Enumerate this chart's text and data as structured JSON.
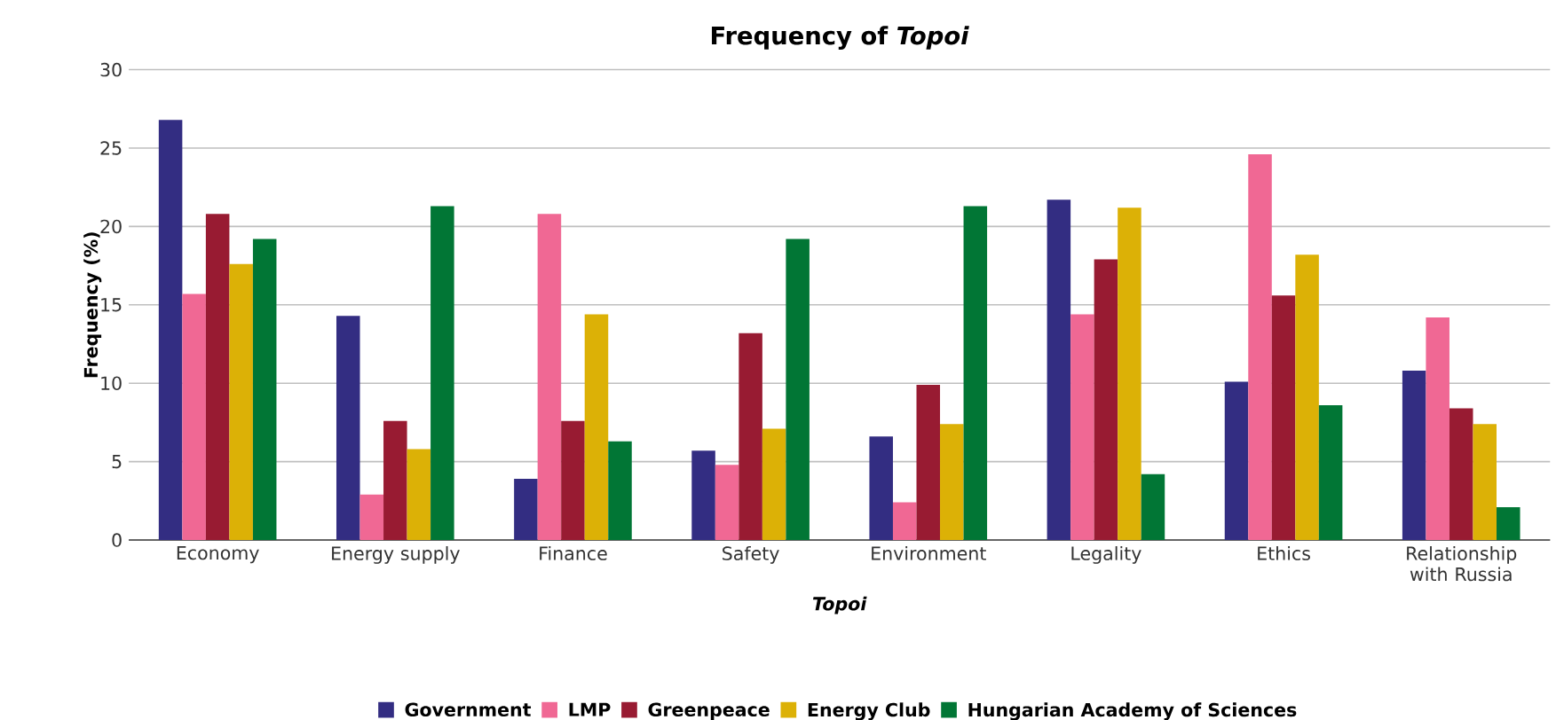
{
  "chart_data": {
    "type": "bar",
    "title": "Frequency of *Topoi*",
    "xlabel": "Topoi",
    "ylabel": "Frequency (%)",
    "categories": [
      "Economy",
      "Energy supply",
      "Finance",
      "Safety",
      "Environment",
      "Legality",
      "Ethics",
      "Relationship with Russia"
    ],
    "series": [
      {
        "name": "Government",
        "color": "#332d82",
        "values": [
          26.8,
          14.3,
          3.9,
          5.7,
          6.6,
          21.7,
          10.1,
          10.8
        ]
      },
      {
        "name": "LMP",
        "color": "#f06894",
        "values": [
          15.7,
          2.9,
          20.8,
          4.8,
          2.4,
          14.4,
          24.6,
          14.2
        ]
      },
      {
        "name": "Greenpeace",
        "color": "#981b32",
        "values": [
          20.8,
          7.6,
          7.6,
          13.2,
          9.9,
          17.9,
          15.6,
          8.4
        ]
      },
      {
        "name": "Energy Club",
        "color": "#dcb106",
        "values": [
          17.6,
          5.8,
          14.4,
          7.1,
          7.4,
          21.2,
          18.2,
          7.4
        ]
      },
      {
        "name": "Hungarian Academy of Sciences",
        "color": "#017635",
        "values": [
          19.2,
          21.3,
          6.3,
          19.2,
          21.3,
          4.2,
          8.6,
          2.1
        ]
      }
    ],
    "ylim": [
      0,
      30
    ],
    "yticks": [
      0,
      5,
      10,
      15,
      20,
      25,
      30
    ],
    "grid": "y",
    "legend": "bottom"
  }
}
